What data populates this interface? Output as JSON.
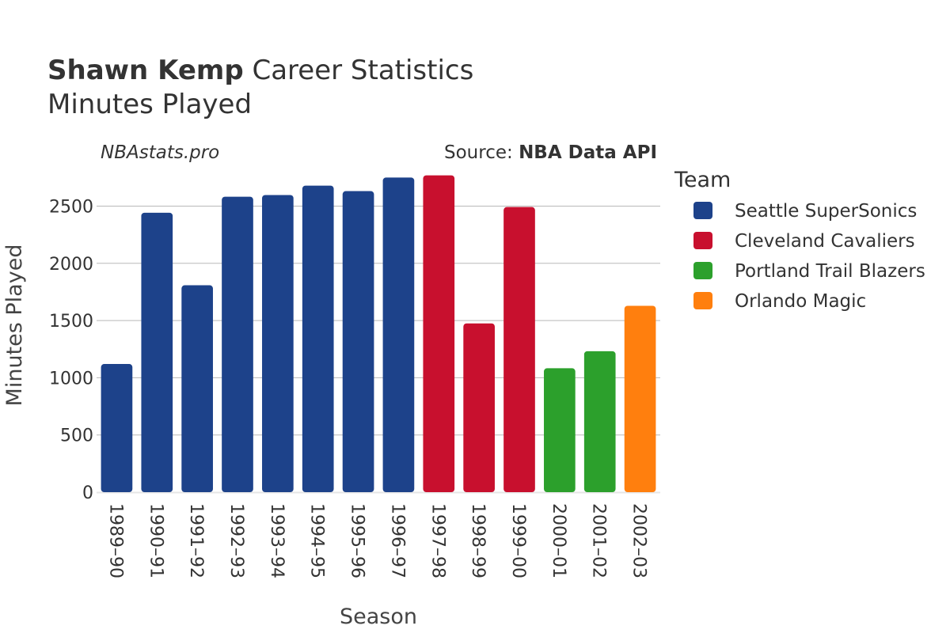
{
  "chart_data": {
    "type": "bar",
    "title_bold": "Shawn Kemp",
    "title_rest": " Career Statistics",
    "subtitle": "Minutes Played",
    "watermark": "NBAstats.pro",
    "source_prefix": "Source: ",
    "source_bold": "NBA Data API",
    "xlabel": "Season",
    "ylabel": "Minutes Played",
    "ylim": [
      0,
      2780
    ],
    "yticks": [
      0,
      500,
      1000,
      1500,
      2000,
      2500
    ],
    "grid": true,
    "legend_title": "Team",
    "legend_position": "right",
    "teams": [
      {
        "name": "Seattle SuperSonics",
        "color": "#1d428a"
      },
      {
        "name": "Cleveland Cavaliers",
        "color": "#c8102e"
      },
      {
        "name": "Portland Trail Blazers",
        "color": "#2ca02c"
      },
      {
        "name": "Orlando Magic",
        "color": "#ff7f0e"
      }
    ],
    "categories": [
      "1989–90",
      "1990–91",
      "1991–92",
      "1992–93",
      "1993–94",
      "1994–95",
      "1995–96",
      "1996–97",
      "1997–98",
      "1998–99",
      "1999–00",
      "2000–01",
      "2001–02",
      "2002–03"
    ],
    "values": [
      1120,
      2442,
      1808,
      2582,
      2597,
      2679,
      2631,
      2750,
      2769,
      1475,
      2492,
      1083,
      1232,
      1629
    ],
    "team_index": [
      0,
      0,
      0,
      0,
      0,
      0,
      0,
      0,
      1,
      1,
      1,
      2,
      2,
      3
    ]
  }
}
